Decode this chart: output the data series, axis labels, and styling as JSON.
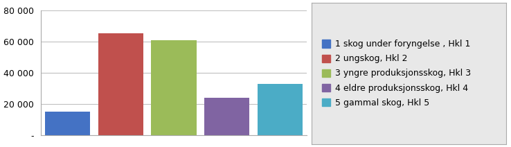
{
  "categories": [
    "1",
    "2",
    "3",
    "4",
    "5"
  ],
  "values": [
    15000,
    65500,
    61000,
    24000,
    33000
  ],
  "bar_colors": [
    "#4472C4",
    "#C0504D",
    "#9BBB59",
    "#8064A2",
    "#4BACC6"
  ],
  "legend_labels": [
    "1 skog under foryngelse , Hkl 1",
    "2 ungskog, Hkl 2",
    "3 yngre produksjonsskog, Hkl 3",
    "4 eldre produksjonsskog, Hkl 4",
    "5 gammal skog, Hkl 5"
  ],
  "ylim": [
    0,
    80000
  ],
  "yticks": [
    0,
    20000,
    40000,
    60000,
    80000
  ],
  "ytick_labels": [
    "-",
    "20 000",
    "40 000",
    "60 000",
    "80 000"
  ],
  "background_color": "#FFFFFF",
  "legend_bg_color": "#E8E8E8",
  "bar_width": 0.85,
  "legend_fontsize": 9,
  "tick_fontsize": 9,
  "grid_color": "#C0C0C0",
  "spine_color": "#AAAAAA"
}
